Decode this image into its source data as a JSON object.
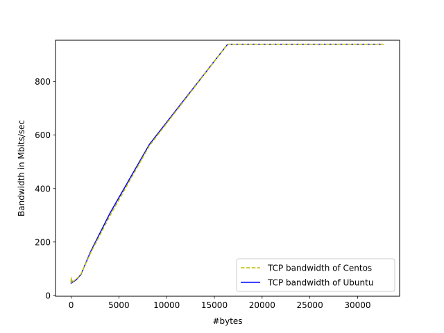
{
  "chart_data": {
    "type": "line",
    "title": "",
    "xlabel": "#bytes",
    "ylabel": "Bandwidth in Mbits/sec",
    "xlim": [
      -1640,
      34400
    ],
    "ylim": [
      -3,
      955
    ],
    "xticks": [
      0,
      5000,
      10000,
      15000,
      20000,
      25000,
      30000
    ],
    "yticks": [
      0,
      200,
      400,
      600,
      800
    ],
    "grid": false,
    "legend_position": "lower-right",
    "series": [
      {
        "name": "TCP bandwidth of Centos",
        "color": "#bfbf00",
        "style": "dashed",
        "x": [
          1,
          2,
          4,
          8,
          16,
          32,
          64,
          128,
          256,
          512,
          1024,
          2048,
          4096,
          8192,
          16384,
          32768
        ],
        "y": [
          60,
          48,
          62,
          50,
          66,
          52,
          58,
          50,
          54,
          60,
          80,
          160,
          300,
          560,
          940,
          940
        ]
      },
      {
        "name": "TCP bandwidth of Ubuntu",
        "color": "#0000ff",
        "style": "solid",
        "x": [
          1,
          2,
          4,
          8,
          16,
          32,
          64,
          128,
          256,
          512,
          1024,
          2048,
          4096,
          8192,
          16384,
          32768
        ],
        "y": [
          55,
          45,
          58,
          48,
          62,
          50,
          56,
          48,
          52,
          58,
          78,
          165,
          310,
          565,
          940,
          940
        ]
      }
    ]
  }
}
